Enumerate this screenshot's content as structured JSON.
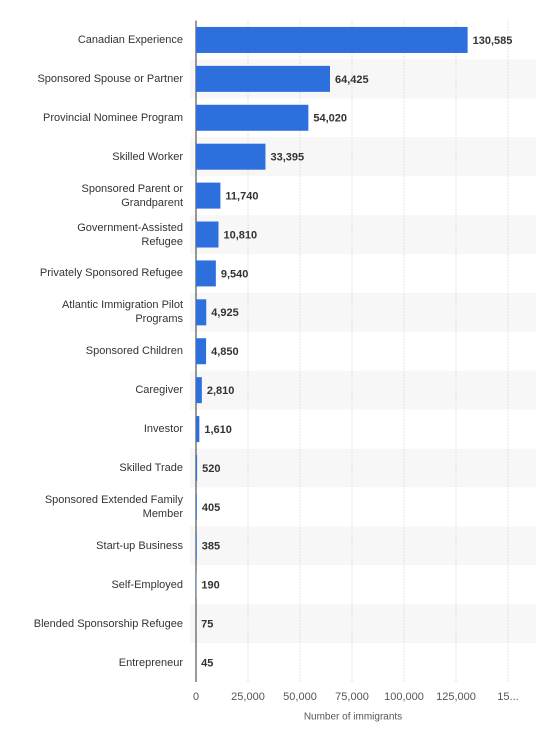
{
  "chart_data": {
    "type": "barh",
    "categories": [
      "Canadian Experience",
      "Sponsored Spouse or Partner",
      "Provincial Nominee Program",
      "Skilled Worker",
      "Sponsored Parent or\nGrandparent",
      "Government-Assisted\nRefugee",
      "Privately Sponsored Refugee",
      "Atlantic Immigration Pilot\nPrograms",
      "Sponsored Children",
      "Caregiver",
      "Investor",
      "Skilled Trade",
      "Sponsored Extended Family\nMember",
      "Start-up Business",
      "Self-Employed",
      "Blended Sponsorship Refugee",
      "Entrepreneur"
    ],
    "values": [
      130585,
      64425,
      54020,
      33395,
      11740,
      10810,
      9540,
      4925,
      4850,
      2810,
      1610,
      520,
      405,
      385,
      190,
      75,
      45
    ],
    "value_labels": [
      "130,585",
      "64,425",
      "54,020",
      "33,395",
      "11,740",
      "10,810",
      "9,540",
      "4,925",
      "4,850",
      "2,810",
      "1,610",
      "520",
      "405",
      "385",
      "190",
      "75",
      "45"
    ],
    "color": "#2d6fdd",
    "xlabel": "Number of immigrants",
    "xlim": [
      0,
      150000
    ],
    "xticks": [
      0,
      {
        "value": 25000,
        "label": "25,000"
      },
      {
        "value": 50000,
        "label": "50,000"
      },
      {
        "value": 75000,
        "label": "75,000"
      },
      {
        "value": 100000,
        "label": "100,000"
      },
      {
        "value": 125000,
        "label": "125,000"
      },
      {
        "value": 150000,
        "label": "15..."
      }
    ],
    "grid": true
  }
}
